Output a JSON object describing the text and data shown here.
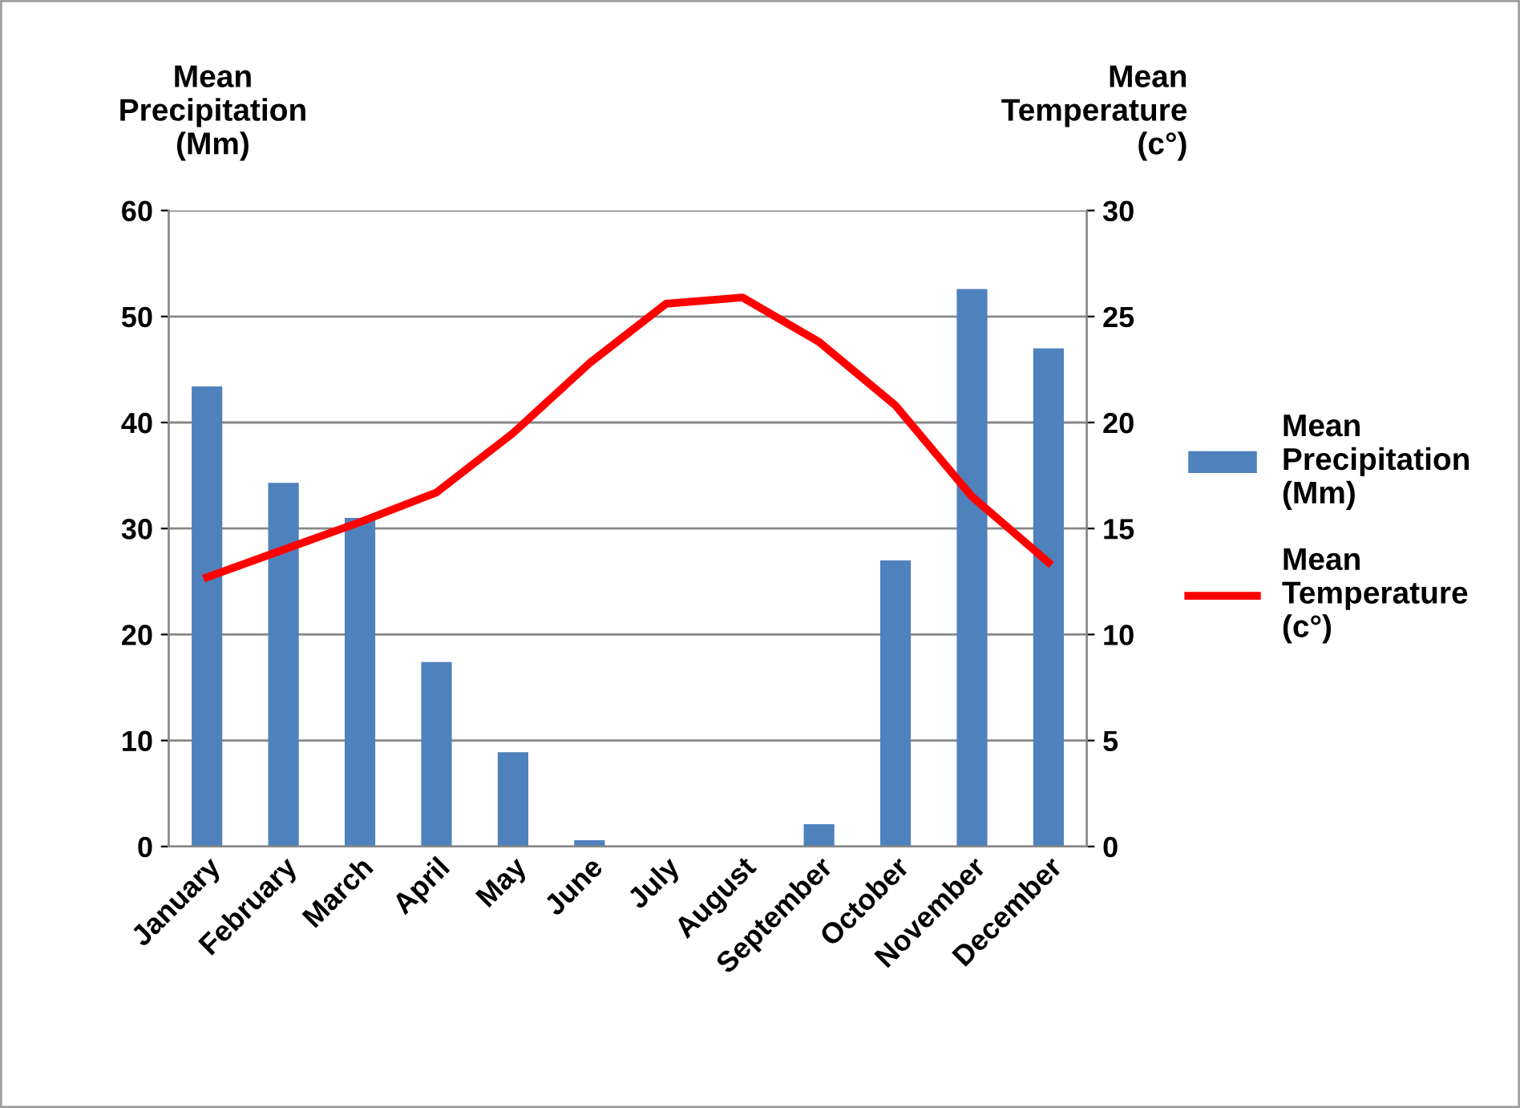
{
  "chart_data": {
    "type": "bar",
    "ylabel": "Mean\nPrecipitation\n(Mm)",
    "y2label": "Mean\nTemperature\n(c°)",
    "categories": [
      "January",
      "February",
      "March",
      "April",
      "May",
      "June",
      "July",
      "August",
      "September",
      "October",
      "November",
      "December"
    ],
    "series": [
      {
        "name": "Mean\nPrecipitation\n(Mm)",
        "color": "#4f81bd",
        "values": [
          43.4,
          34.3,
          31.0,
          17.4,
          8.9,
          0.6,
          0,
          0,
          2.1,
          27.0,
          52.6,
          47.0
        ]
      },
      {
        "name": "Mean\nTemperature\n(c°)",
        "color": "#ff0000",
        "type": "line",
        "axis": "y2",
        "values": [
          12.7,
          14.0,
          15.3,
          16.7,
          19.5,
          22.8,
          25.6,
          25.9,
          23.8,
          20.8,
          16.5,
          13.4
        ]
      }
    ],
    "ylim": [
      0,
      60
    ],
    "yticks": [
      0,
      10,
      20,
      30,
      40,
      50,
      60
    ],
    "y2lim": [
      0,
      30
    ],
    "y2ticks": [
      0,
      5,
      10,
      15,
      20,
      25,
      30
    ],
    "grid": "y",
    "legend": "right",
    "marker": "none",
    "line_style": "solid"
  }
}
